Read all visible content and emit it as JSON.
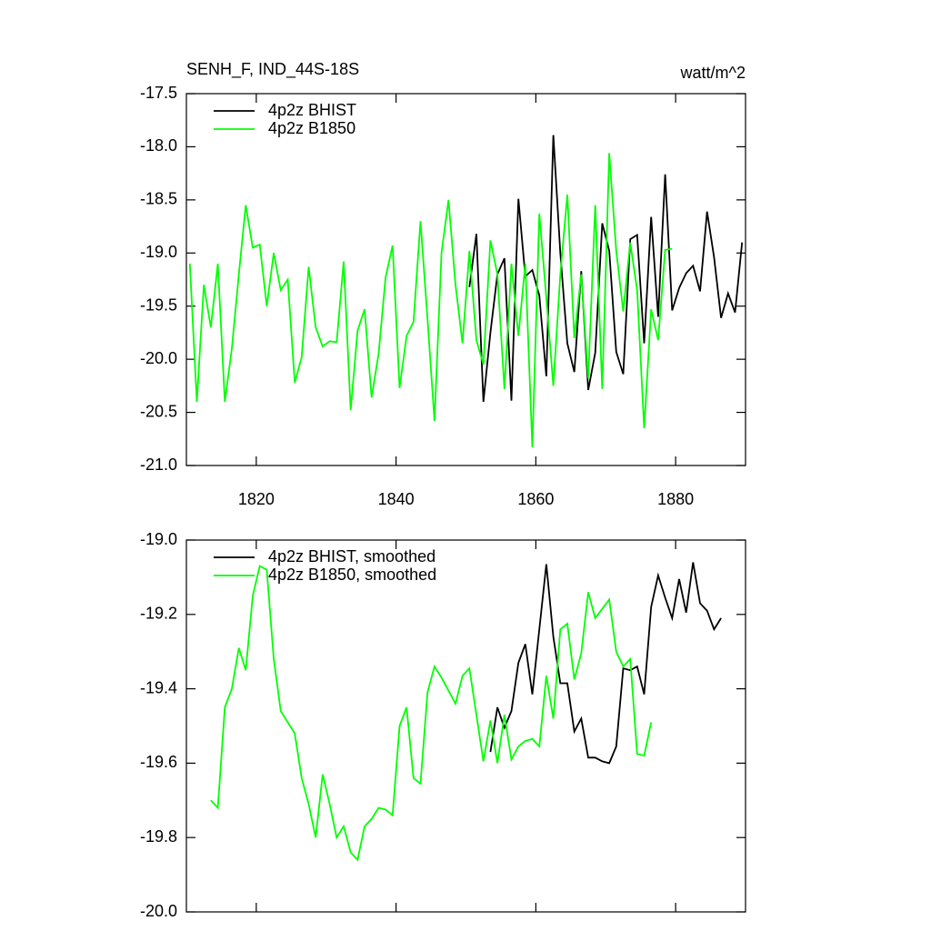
{
  "chart_data": [
    {
      "type": "line",
      "title": "SENH_F, IND_44S-18S",
      "units": "watt/m^2",
      "xlim": [
        1810,
        1890
      ],
      "xticks": [
        1820,
        1840,
        1860,
        1880
      ],
      "ylim": [
        -21.0,
        -17.5
      ],
      "yticks": [
        -17.5,
        {
          "value": -18,
          "label": "-18.0"
        },
        -18.5,
        {
          "value": -19,
          "label": "-19.0"
        },
        -19.5,
        {
          "value": -20,
          "label": "-20.0"
        },
        -20.5,
        {
          "value": -21,
          "label": "-21.0"
        }
      ],
      "series": [
        {
          "name": "4p2z BHIST",
          "color": "#000000",
          "x": [
            1850.5,
            1851.5,
            1852.5,
            1853.5,
            1854.5,
            1855.5,
            1856.5,
            1857.5,
            1858.5,
            1859.5,
            1860.5,
            1861.5,
            1862.5,
            1863.5,
            1864.5,
            1865.5,
            1866.5,
            1867.5,
            1868.5,
            1869.5,
            1870.5,
            1871.5,
            1872.5,
            1873.5,
            1874.5,
            1875.5,
            1876.5,
            1877.5,
            1878.5,
            1879.5,
            1880.5,
            1881.5,
            1882.5,
            1883.5,
            1884.5,
            1885.5,
            1886.5,
            1887.5,
            1888.5,
            1889.5
          ],
          "values": [
            -19.32,
            -18.82,
            -20.4,
            -19.75,
            -19.2,
            -19.05,
            -20.39,
            -18.49,
            -19.22,
            -19.16,
            -19.4,
            -20.16,
            -17.89,
            -19.0,
            -19.85,
            -20.12,
            -19.17,
            -20.29,
            -19.94,
            -18.72,
            -18.98,
            -19.93,
            -20.14,
            -18.87,
            -18.83,
            -19.85,
            -18.66,
            -19.6,
            -18.26,
            -19.54,
            -19.33,
            -19.19,
            -19.12,
            -19.36,
            -18.61,
            -19.04,
            -19.61,
            -19.38,
            -19.56,
            -18.9
          ]
        },
        {
          "name": "4p2z B1850",
          "color": "#00ff00",
          "x": [
            1810.5,
            1811.5,
            1812.5,
            1813.5,
            1814.5,
            1815.5,
            1816.5,
            1817.5,
            1818.5,
            1819.5,
            1820.5,
            1821.5,
            1822.5,
            1823.5,
            1824.5,
            1825.5,
            1826.5,
            1827.5,
            1828.5,
            1829.5,
            1830.5,
            1831.5,
            1832.5,
            1833.5,
            1834.5,
            1835.5,
            1836.5,
            1837.5,
            1838.5,
            1839.5,
            1840.5,
            1841.5,
            1842.5,
            1843.5,
            1844.5,
            1845.5,
            1846.5,
            1847.5,
            1848.5,
            1849.5,
            1850.5,
            1851.5,
            1852.5,
            1853.5,
            1854.5,
            1855.5,
            1856.5,
            1857.5,
            1858.5,
            1859.5,
            1860.5,
            1861.5,
            1862.5,
            1863.5,
            1864.5,
            1865.5,
            1866.5,
            1867.5,
            1868.5,
            1869.5,
            1870.5,
            1871.5,
            1872.5,
            1873.5,
            1874.5,
            1875.5,
            1876.5,
            1877.5,
            1878.5,
            1879.5
          ],
          "values": [
            -19.1,
            -20.4,
            -19.3,
            -19.7,
            -19.1,
            -20.4,
            -19.9,
            -19.2,
            -18.55,
            -18.95,
            -18.92,
            -19.5,
            -19.0,
            -19.35,
            -19.25,
            -20.22,
            -19.98,
            -19.13,
            -19.7,
            -19.88,
            -19.83,
            -19.84,
            -19.08,
            -20.48,
            -19.73,
            -19.53,
            -20.36,
            -19.95,
            -19.23,
            -18.93,
            -20.27,
            -19.78,
            -19.65,
            -18.7,
            -19.62,
            -20.58,
            -19.0,
            -18.5,
            -19.3,
            -19.85,
            -18.98,
            -19.82,
            -20.05,
            -18.88,
            -19.2,
            -20.28,
            -19.1,
            -19.78,
            -19.1,
            -20.83,
            -18.63,
            -19.42,
            -20.25,
            -19.2,
            -18.45,
            -19.8,
            -19.2,
            -20.18,
            -18.55,
            -20.28,
            -18.06,
            -18.98,
            -19.55,
            -18.9,
            -19.35,
            -20.65,
            -19.53,
            -19.82,
            -18.97,
            -18.96
          ]
        }
      ]
    },
    {
      "type": "line",
      "xlim": [
        1810,
        1890
      ],
      "xticks": [
        1820,
        1840,
        1860,
        1880
      ],
      "ylim": [
        -20.0,
        -19.0
      ],
      "yticks": [
        {
          "value": -19,
          "label": "-19.0"
        },
        -19.2,
        -19.4,
        -19.6,
        -19.8,
        {
          "value": -20,
          "label": "-20.0"
        }
      ],
      "series": [
        {
          "name": "4p2z BHIST, smoothed",
          "color": "#000000",
          "x": [
            1853.5,
            1854.5,
            1855.5,
            1856.5,
            1857.5,
            1858.5,
            1859.5,
            1860.5,
            1861.5,
            1862.5,
            1863.5,
            1864.5,
            1865.5,
            1866.5,
            1867.5,
            1868.5,
            1869.5,
            1870.5,
            1871.5,
            1872.5,
            1873.5,
            1874.5,
            1875.5,
            1876.5,
            1877.5,
            1878.5,
            1879.5,
            1880.5,
            1881.5,
            1882.5,
            1883.5,
            1884.5,
            1885.5,
            1886.5
          ],
          "values": [
            -19.57,
            -19.45,
            -19.505,
            -19.46,
            -19.33,
            -19.28,
            -19.415,
            -19.24,
            -19.065,
            -19.26,
            -19.385,
            -19.385,
            -19.515,
            -19.48,
            -19.585,
            -19.585,
            -19.595,
            -19.6,
            -19.555,
            -19.345,
            -19.35,
            -19.34,
            -19.415,
            -19.18,
            -19.095,
            -19.155,
            -19.21,
            -19.105,
            -19.195,
            -19.06,
            -19.17,
            -19.19,
            -19.24,
            -19.21
          ]
        },
        {
          "name": "4p2z B1850, smoothed",
          "color": "#00ff00",
          "x": [
            1813.5,
            1814.5,
            1815.5,
            1816.5,
            1817.5,
            1818.5,
            1819.5,
            1820.5,
            1821.5,
            1822.5,
            1823.5,
            1824.5,
            1825.5,
            1826.5,
            1827.5,
            1828.5,
            1829.5,
            1830.5,
            1831.5,
            1832.5,
            1833.5,
            1834.5,
            1835.5,
            1836.5,
            1837.5,
            1838.5,
            1839.5,
            1840.5,
            1841.5,
            1842.5,
            1843.5,
            1844.5,
            1845.5,
            1846.5,
            1847.5,
            1848.5,
            1849.5,
            1850.5,
            1851.5,
            1852.5,
            1853.5,
            1854.5,
            1855.5,
            1856.5,
            1857.5,
            1858.5,
            1859.5,
            1860.5,
            1861.5,
            1862.5,
            1863.5,
            1864.5,
            1865.5,
            1866.5,
            1867.5,
            1868.5,
            1869.5,
            1870.5,
            1871.5,
            1872.5,
            1873.5,
            1874.5,
            1875.5,
            1876.5
          ],
          "values": [
            -19.7,
            -19.72,
            -19.45,
            -19.4,
            -19.29,
            -19.35,
            -19.15,
            -19.07,
            -19.08,
            -19.32,
            -19.46,
            -19.49,
            -19.52,
            -19.64,
            -19.71,
            -19.8,
            -19.63,
            -19.71,
            -19.8,
            -19.77,
            -19.84,
            -19.86,
            -19.77,
            -19.75,
            -19.72,
            -19.725,
            -19.74,
            -19.5,
            -19.45,
            -19.64,
            -19.655,
            -19.41,
            -19.34,
            -19.37,
            -19.405,
            -19.44,
            -19.365,
            -19.345,
            -19.47,
            -19.595,
            -19.485,
            -19.6,
            -19.47,
            -19.59,
            -19.555,
            -19.54,
            -19.535,
            -19.555,
            -19.365,
            -19.48,
            -19.24,
            -19.225,
            -19.375,
            -19.305,
            -19.14,
            -19.21,
            -19.185,
            -19.16,
            -19.3,
            -19.34,
            -19.32,
            -19.575,
            -19.58,
            -19.49
          ]
        }
      ]
    }
  ]
}
